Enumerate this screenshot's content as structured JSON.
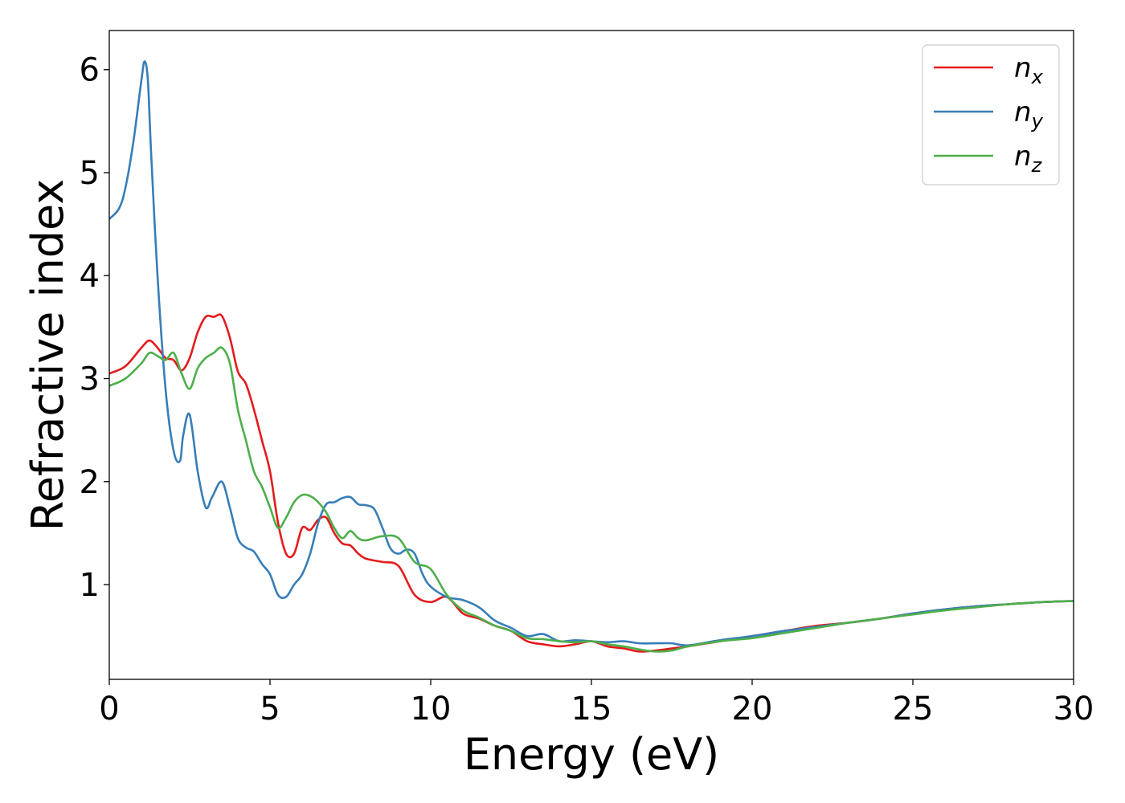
{
  "chart_data": {
    "type": "line",
    "title": "",
    "xlabel": "Energy (eV)",
    "ylabel": "Refractive index",
    "xlim": [
      0,
      30
    ],
    "ylim": [
      0.08,
      6.38
    ],
    "xticks": [
      0,
      5,
      10,
      15,
      20,
      25,
      30
    ],
    "yticks": [
      1,
      2,
      3,
      4,
      5,
      6
    ],
    "grid": false,
    "legend_position": "top-right",
    "series": [
      {
        "name": "n",
        "subscript": "x",
        "color": "#e41a1c",
        "x": [
          0,
          0.5,
          1.0,
          1.25,
          1.5,
          1.75,
          2.0,
          2.25,
          2.5,
          2.75,
          3.0,
          3.25,
          3.5,
          3.75,
          4.0,
          4.25,
          4.5,
          4.75,
          5.0,
          5.25,
          5.5,
          5.75,
          6.0,
          6.25,
          6.5,
          6.75,
          7.0,
          7.25,
          7.5,
          7.75,
          8.0,
          8.5,
          9.0,
          9.5,
          10.0,
          10.5,
          11.0,
          11.5,
          12.0,
          12.5,
          13.0,
          13.5,
          14.0,
          14.5,
          15.0,
          15.5,
          16.0,
          16.5,
          17.0,
          17.5,
          18.0,
          19.0,
          20.0,
          21.0,
          22.0,
          23.0,
          24.0,
          25.0,
          26.0,
          27.0,
          28.0,
          29.0,
          30.0
        ],
        "values": [
          3.05,
          3.12,
          3.3,
          3.37,
          3.3,
          3.2,
          3.18,
          3.08,
          3.2,
          3.45,
          3.6,
          3.6,
          3.61,
          3.4,
          3.07,
          2.95,
          2.7,
          2.4,
          2.1,
          1.6,
          1.3,
          1.3,
          1.55,
          1.53,
          1.63,
          1.65,
          1.5,
          1.4,
          1.38,
          1.3,
          1.25,
          1.22,
          1.18,
          0.9,
          0.83,
          0.88,
          0.72,
          0.67,
          0.6,
          0.55,
          0.45,
          0.42,
          0.4,
          0.42,
          0.45,
          0.4,
          0.38,
          0.35,
          0.36,
          0.38,
          0.4,
          0.45,
          0.5,
          0.55,
          0.6,
          0.63,
          0.67,
          0.72,
          0.76,
          0.79,
          0.81,
          0.83,
          0.84
        ]
      },
      {
        "name": "n",
        "subscript": "y",
        "color": "#377eb8",
        "x": [
          0,
          0.3,
          0.5,
          0.75,
          1.0,
          1.1,
          1.2,
          1.3,
          1.5,
          1.75,
          2.0,
          2.2,
          2.3,
          2.5,
          2.75,
          3.0,
          3.2,
          3.5,
          3.75,
          4.0,
          4.25,
          4.5,
          4.75,
          5.0,
          5.25,
          5.5,
          5.75,
          6.0,
          6.25,
          6.5,
          6.75,
          7.0,
          7.25,
          7.5,
          7.75,
          8.0,
          8.25,
          8.5,
          8.75,
          9.0,
          9.25,
          9.5,
          9.75,
          10.0,
          10.5,
          11.0,
          11.5,
          12.0,
          12.5,
          13.0,
          13.5,
          14.0,
          14.5,
          15.0,
          15.5,
          16.0,
          16.5,
          17.0,
          17.5,
          18.0,
          19.0,
          20.0,
          21.0,
          22.0,
          23.0,
          24.0,
          25.0,
          26.0,
          27.0,
          28.0,
          29.0,
          30.0
        ],
        "values": [
          4.55,
          4.65,
          4.85,
          5.3,
          5.9,
          6.08,
          5.9,
          5.2,
          4.0,
          2.9,
          2.3,
          2.2,
          2.45,
          2.65,
          2.1,
          1.75,
          1.85,
          2.0,
          1.75,
          1.45,
          1.36,
          1.32,
          1.2,
          1.1,
          0.9,
          0.88,
          1.0,
          1.1,
          1.3,
          1.6,
          1.78,
          1.8,
          1.84,
          1.85,
          1.78,
          1.77,
          1.73,
          1.55,
          1.35,
          1.3,
          1.34,
          1.3,
          1.1,
          0.98,
          0.88,
          0.85,
          0.78,
          0.65,
          0.58,
          0.5,
          0.52,
          0.45,
          0.46,
          0.45,
          0.44,
          0.45,
          0.43,
          0.43,
          0.43,
          0.41,
          0.46,
          0.5,
          0.55,
          0.59,
          0.63,
          0.67,
          0.72,
          0.76,
          0.79,
          0.81,
          0.83,
          0.84
        ]
      },
      {
        "name": "n",
        "subscript": "z",
        "color": "#4daf4a",
        "x": [
          0,
          0.5,
          1.0,
          1.25,
          1.5,
          1.75,
          2.0,
          2.25,
          2.5,
          2.75,
          3.0,
          3.25,
          3.5,
          3.75,
          4.0,
          4.25,
          4.5,
          4.75,
          5.0,
          5.25,
          5.5,
          5.75,
          6.0,
          6.25,
          6.5,
          6.75,
          7.0,
          7.25,
          7.5,
          7.75,
          8.0,
          8.5,
          9.0,
          9.5,
          10.0,
          10.5,
          11.0,
          11.5,
          12.0,
          12.5,
          13.0,
          13.5,
          14.0,
          14.5,
          15.0,
          15.5,
          16.0,
          16.5,
          17.0,
          17.5,
          18.0,
          19.0,
          20.0,
          21.0,
          22.0,
          23.0,
          24.0,
          25.0,
          26.0,
          27.0,
          28.0,
          29.0,
          30.0
        ],
        "values": [
          2.93,
          3.0,
          3.15,
          3.25,
          3.22,
          3.18,
          3.25,
          3.05,
          2.9,
          3.1,
          3.2,
          3.25,
          3.3,
          3.15,
          2.7,
          2.4,
          2.1,
          1.95,
          1.75,
          1.55,
          1.65,
          1.8,
          1.87,
          1.86,
          1.8,
          1.7,
          1.55,
          1.45,
          1.52,
          1.45,
          1.43,
          1.47,
          1.45,
          1.22,
          1.15,
          0.9,
          0.75,
          0.68,
          0.6,
          0.55,
          0.48,
          0.47,
          0.45,
          0.44,
          0.45,
          0.42,
          0.4,
          0.37,
          0.35,
          0.36,
          0.4,
          0.45,
          0.48,
          0.53,
          0.58,
          0.63,
          0.67,
          0.71,
          0.75,
          0.78,
          0.81,
          0.83,
          0.84
        ]
      }
    ]
  }
}
